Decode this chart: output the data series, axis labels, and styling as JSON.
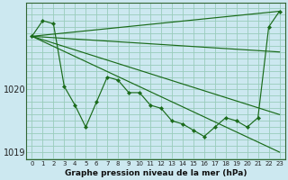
{
  "xlabel": "Graphe pression niveau de la mer (hPa)",
  "background_color": "#cce8f0",
  "plot_bg_color": "#cce8f0",
  "grid_color": "#99ccbb",
  "line_color": "#1a6b1a",
  "ylim": [
    1018.88,
    1021.38
  ],
  "xlim": [
    -0.5,
    23.5
  ],
  "yticks": [
    1019,
    1020
  ],
  "xticks": [
    0,
    1,
    2,
    3,
    4,
    5,
    6,
    7,
    8,
    9,
    10,
    11,
    12,
    13,
    14,
    15,
    16,
    17,
    18,
    19,
    20,
    21,
    22,
    23
  ],
  "zigzag": [
    1020.85,
    1021.1,
    1021.05,
    1020.05,
    1019.75,
    1019.4,
    1019.8,
    1020.2,
    1020.15,
    1019.95,
    1019.95,
    1019.75,
    1019.7,
    1019.5,
    1019.45,
    1019.35,
    1019.25,
    1019.4,
    1019.55,
    1019.5,
    1019.4,
    1019.55,
    1021.0,
    1021.25
  ],
  "trend_lines": [
    {
      "x0": 0,
      "y0": 1020.85,
      "x1": 23,
      "y1": 1021.25
    },
    {
      "x0": 0,
      "y0": 1020.85,
      "x1": 23,
      "y1": 1020.6
    },
    {
      "x0": 0,
      "y0": 1020.85,
      "x1": 23,
      "y1": 1019.6
    },
    {
      "x0": 0,
      "y0": 1020.85,
      "x1": 23,
      "y1": 1019.0
    }
  ]
}
